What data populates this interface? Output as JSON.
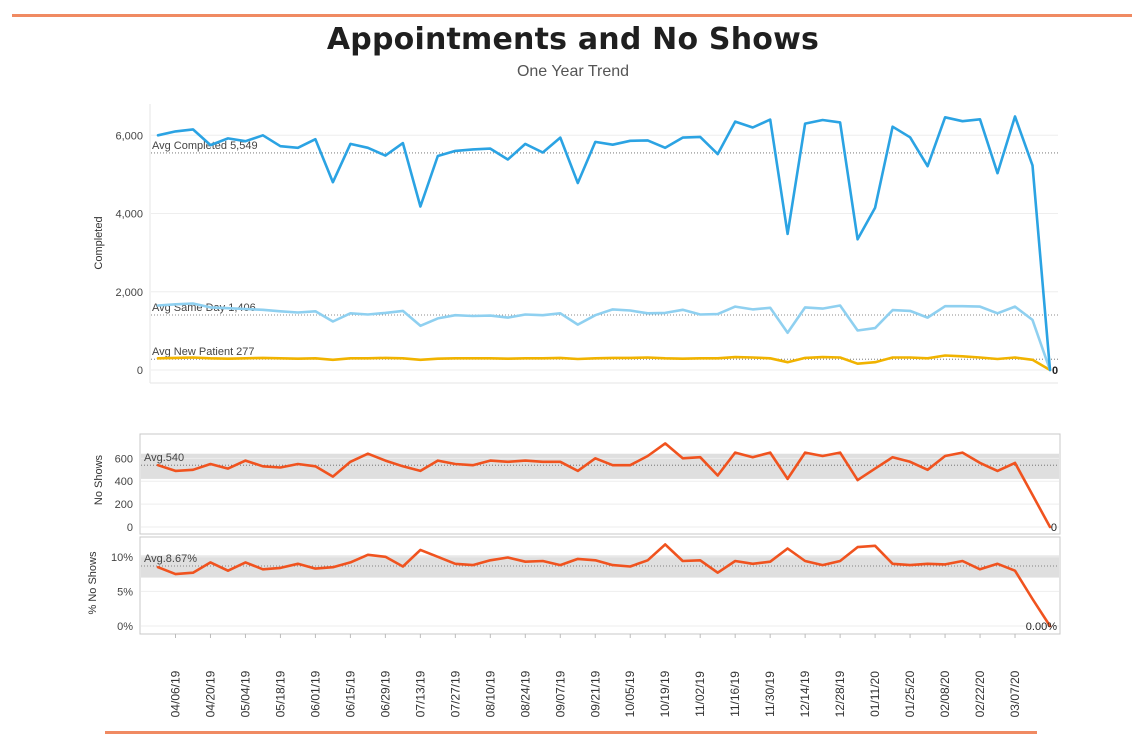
{
  "title": "Appointments and No Shows",
  "subtitle": "One Year Trend",
  "colors": {
    "completed": "#2ba3e3",
    "same_day": "#8fd0f0",
    "new_patient": "#f1b300",
    "no_shows": "#f0531f",
    "band": "#d9d9d9",
    "rule": "#f08a62"
  },
  "chart_data": [
    {
      "type": "line",
      "ylabel": "Completed",
      "ylim": [
        0,
        6800
      ],
      "yticks": [
        "0",
        "2,000",
        "4,000",
        "6,000"
      ],
      "ytick_values": [
        0,
        2000,
        4000,
        6000
      ],
      "series": [
        {
          "name": "Completed",
          "values": [
            6000,
            6100,
            6150,
            5750,
            5920,
            5850,
            6000,
            5720,
            5680,
            5900,
            4800,
            5780,
            5680,
            5480,
            5800,
            4180,
            5470,
            5600,
            5640,
            5660,
            5380,
            5780,
            5560,
            5940,
            4780,
            5830,
            5760,
            5860,
            5870,
            5680,
            5940,
            5960,
            5520,
            6350,
            6200,
            6400,
            3480,
            6300,
            6390,
            6330,
            3340,
            4150,
            6220,
            5950,
            5210,
            6460,
            6360,
            6410,
            5030,
            6480,
            5230,
            0
          ]
        },
        {
          "name": "Same Day",
          "values": [
            1650,
            1680,
            1700,
            1600,
            1580,
            1560,
            1540,
            1500,
            1470,
            1500,
            1240,
            1450,
            1420,
            1460,
            1510,
            1130,
            1320,
            1400,
            1380,
            1390,
            1340,
            1420,
            1400,
            1450,
            1160,
            1400,
            1550,
            1520,
            1450,
            1460,
            1540,
            1420,
            1430,
            1620,
            1550,
            1590,
            950,
            1600,
            1570,
            1650,
            1010,
            1070,
            1530,
            1510,
            1340,
            1630,
            1630,
            1620,
            1450,
            1620,
            1280,
            0
          ]
        },
        {
          "name": "New Patient",
          "values": [
            300,
            310,
            320,
            300,
            290,
            300,
            310,
            300,
            290,
            300,
            260,
            300,
            300,
            310,
            300,
            260,
            290,
            300,
            300,
            300,
            290,
            300,
            300,
            310,
            280,
            300,
            310,
            310,
            320,
            300,
            290,
            300,
            300,
            330,
            320,
            300,
            200,
            310,
            330,
            320,
            160,
            200,
            320,
            320,
            300,
            370,
            350,
            320,
            280,
            320,
            260,
            0
          ]
        }
      ],
      "reference_lines": [
        {
          "label": "Avg Completed 5,549",
          "value": 5549
        },
        {
          "label": "Avg Same Day 1,406",
          "value": 1406
        },
        {
          "label": "Avg New Patient 277",
          "value": 277
        }
      ],
      "end_label": "0"
    },
    {
      "type": "line",
      "ylabel": "No Shows",
      "ylim": [
        0,
        760
      ],
      "yticks": [
        "0",
        "200",
        "400",
        "600"
      ],
      "ytick_values": [
        0,
        200,
        400,
        600
      ],
      "series": [
        {
          "name": "No Shows",
          "values": [
            540,
            490,
            500,
            550,
            510,
            580,
            530,
            520,
            550,
            530,
            440,
            570,
            640,
            580,
            530,
            490,
            580,
            550,
            540,
            580,
            570,
            580,
            570,
            570,
            490,
            600,
            540,
            540,
            620,
            730,
            600,
            610,
            450,
            650,
            610,
            650,
            420,
            650,
            620,
            650,
            410,
            510,
            610,
            570,
            500,
            620,
            650,
            560,
            490,
            560,
            280,
            0
          ]
        }
      ],
      "average": {
        "label": "Avg.540",
        "value": 540
      },
      "band": [
        420,
        640
      ],
      "end_label": "0"
    },
    {
      "type": "line",
      "ylabel": "% No Shows",
      "ylim": [
        0,
        12
      ],
      "yticks": [
        "0%",
        "5%",
        "10%"
      ],
      "ytick_values": [
        0,
        5,
        10
      ],
      "series": [
        {
          "name": "% No Shows",
          "values": [
            8.5,
            7.5,
            7.7,
            9.2,
            8.0,
            9.2,
            8.2,
            8.4,
            9.0,
            8.3,
            8.5,
            9.2,
            10.3,
            10.0,
            8.6,
            11.0,
            10.0,
            9.0,
            8.8,
            9.5,
            9.9,
            9.3,
            9.4,
            8.8,
            9.7,
            9.5,
            8.8,
            8.6,
            9.5,
            11.8,
            9.4,
            9.5,
            7.7,
            9.4,
            9.0,
            9.3,
            11.2,
            9.4,
            8.8,
            9.4,
            11.4,
            11.6,
            9.0,
            8.8,
            9.0,
            8.9,
            9.4,
            8.2,
            9.0,
            8.0,
            3.9,
            0
          ]
        }
      ],
      "average": {
        "label": "Avg.8.67%",
        "value": 8.67
      },
      "band": [
        7.0,
        10.2
      ],
      "end_label": "0.00%"
    }
  ],
  "x_ticks": [
    "04/06/19",
    "04/20/19",
    "05/04/19",
    "05/18/19",
    "06/01/19",
    "06/15/19",
    "06/29/19",
    "07/13/19",
    "07/27/19",
    "08/10/19",
    "08/24/19",
    "09/07/19",
    "09/21/19",
    "10/05/19",
    "10/19/19",
    "11/02/19",
    "11/16/19",
    "11/30/19",
    "12/14/19",
    "12/28/19",
    "01/11/20",
    "01/25/20",
    "02/08/20",
    "02/22/20",
    "03/07/20"
  ]
}
